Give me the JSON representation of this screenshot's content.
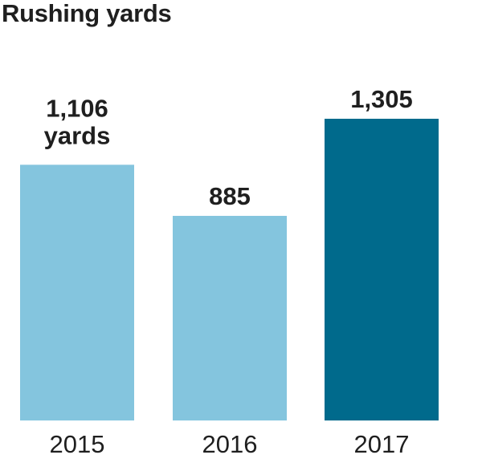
{
  "chart_data": {
    "type": "bar",
    "title": "Rushing yards",
    "categories": [
      "2015",
      "2016",
      "2017"
    ],
    "values": [
      1106,
      885,
      1305
    ],
    "value_labels": [
      "1,106",
      "885",
      "1,305"
    ],
    "unit_label": "yards",
    "colors": [
      "#84c5de",
      "#84c5de",
      "#006a8c"
    ],
    "ylim": [
      0,
      1400
    ],
    "grid": false,
    "legend": "none",
    "xlabel": "",
    "ylabel": ""
  }
}
